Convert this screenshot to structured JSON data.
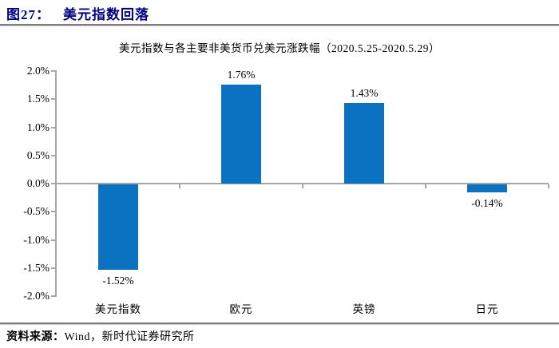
{
  "figure": {
    "number": "图27：",
    "title": "美元指数回落",
    "source_label": "资料来源：",
    "source_text": "Wind，新时代证券研究所"
  },
  "chart_data": {
    "type": "bar",
    "title": "美元指数与各主要非美货币兑美元涨跌幅（2020.5.25-2020.5.29）",
    "categories": [
      "美元指数",
      "欧元",
      "英镑",
      "日元"
    ],
    "values": [
      -1.52,
      1.76,
      1.43,
      -0.14
    ],
    "value_labels": [
      "-1.52%",
      "1.76%",
      "1.43%",
      "-0.14%"
    ],
    "ylim": [
      -2.0,
      2.0
    ],
    "ytick_step": 0.5,
    "ytick_labels": [
      "2.0%",
      "1.5%",
      "1.0%",
      "0.5%",
      "0.0%",
      "-0.5%",
      "-1.0%",
      "-1.5%",
      "-2.0%"
    ],
    "xlabel": "",
    "ylabel": "",
    "grid": false,
    "legend": null,
    "colors": {
      "bar": "#0b72c1",
      "axis": "#a6a6a6",
      "heading": "#000080",
      "rule": "#7f7f7f",
      "text": "#000000"
    }
  }
}
